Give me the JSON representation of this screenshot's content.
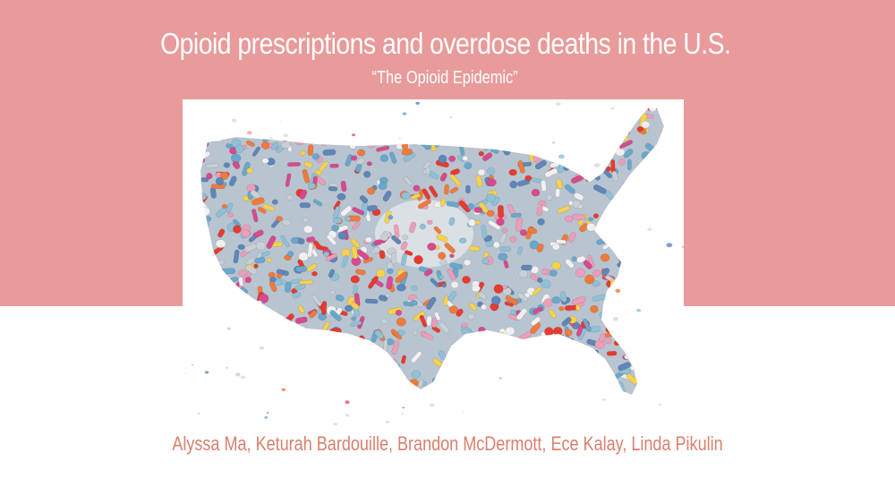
{
  "slide": {
    "title": "Opioid prescriptions and overdose deaths in the U.S.",
    "subtitle": "“The Opioid Epidemic”",
    "authors": "Alyssa Ma, Keturah Bardouille, Brandon McDermott, Ece Kalay, Linda Pikulin"
  },
  "image": {
    "subject": "usa-map-made-of-pills",
    "pill_colors": [
      "#8fc0d8",
      "#6aa7cc",
      "#f07a3c",
      "#e83a2e",
      "#d84a8e",
      "#f0f0f2",
      "#c9cfd6",
      "#f6d24c",
      "#5f86b8",
      "#ec9db9"
    ]
  },
  "colors": {
    "band": "#e99a9a",
    "title_text": "#ffffff",
    "authors_text": "#d9806d",
    "background": "#ffffff"
  }
}
